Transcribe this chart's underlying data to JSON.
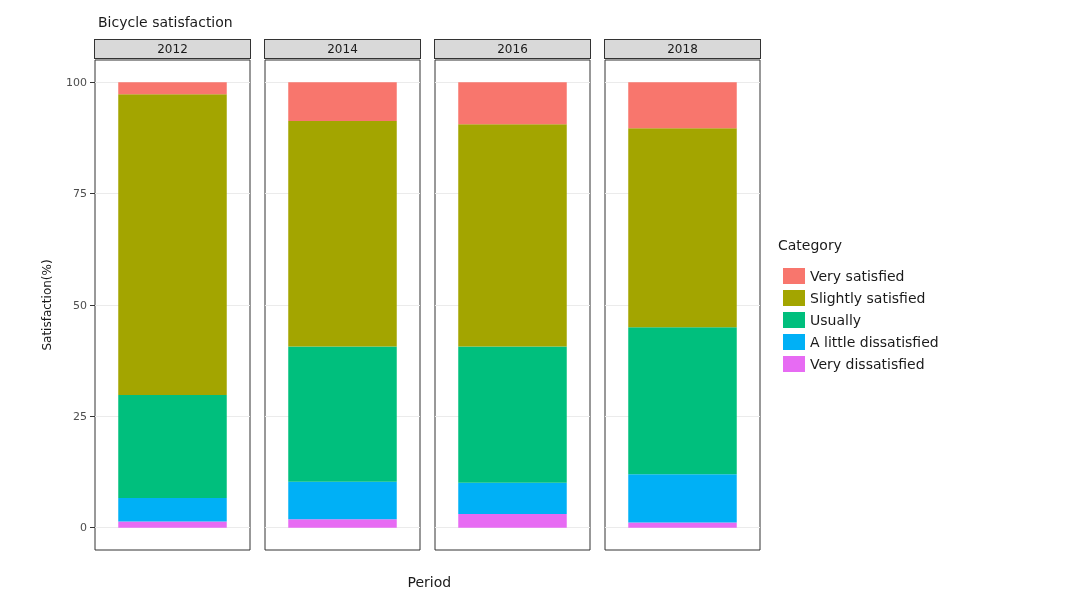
{
  "chart_data": {
    "type": "bar",
    "stacked": true,
    "title": "Bicycle satisfaction",
    "xlabel": "Period",
    "ylabel": "Satisfaction(%)",
    "legend_title": "Category",
    "categories": [
      "2012",
      "2014",
      "2016",
      "2018"
    ],
    "series": [
      {
        "name": "Very dissatisfied",
        "color": "#e76bf3",
        "values": [
          1.4,
          1.9,
          3.1,
          1.2
        ]
      },
      {
        "name": "A little dissatisfied",
        "color": "#00b0f6",
        "values": [
          5.3,
          8.4,
          7.0,
          10.8
        ]
      },
      {
        "name": "Usually",
        "color": "#00bf7d",
        "values": [
          23.1,
          30.4,
          30.6,
          33.0
        ]
      },
      {
        "name": "Slightly satisfied",
        "color": "#a3a500",
        "values": [
          67.5,
          50.6,
          49.9,
          44.7
        ]
      },
      {
        "name": "Very satisfied",
        "color": "#f8766d",
        "values": [
          2.7,
          8.7,
          9.4,
          10.3
        ]
      }
    ],
    "ylim": [
      -5,
      105
    ],
    "yticks": [
      0,
      25,
      50,
      75,
      100
    ],
    "grid": true,
    "legend": "right"
  }
}
